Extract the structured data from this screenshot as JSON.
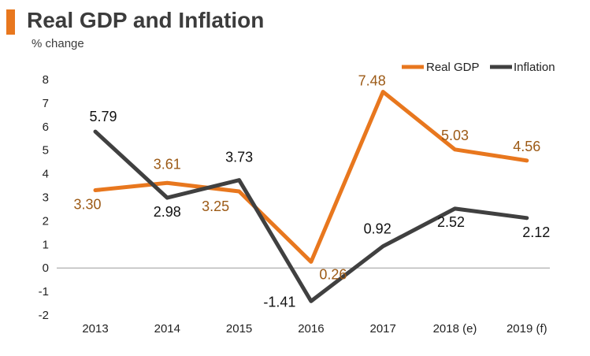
{
  "header": {
    "title": "Real GDP and Inflation",
    "subtitle": "% change"
  },
  "colors": {
    "accent": "#e8771e",
    "real_gdp": "#e8771e",
    "inflation": "#404040",
    "real_gdp_label": "#9c5a16",
    "inflation_label": "#111111",
    "axis_text": "#222222",
    "zero_line": "#9a9a9a"
  },
  "chart_data": {
    "type": "line",
    "title": "Real GDP and Inflation",
    "subtitle": "% change",
    "xlabel": "",
    "ylabel": "",
    "categories": [
      "2013",
      "2014",
      "2015",
      "2016",
      "2017",
      "2018 (e)",
      "2019 (f)"
    ],
    "ylim": [
      -2,
      8
    ],
    "yticks": [
      8,
      7,
      6,
      5,
      4,
      3,
      2,
      1,
      0,
      -1,
      -2
    ],
    "grid": false,
    "legend_position": "top-right",
    "series": [
      {
        "name": "Real GDP",
        "values": [
          3.3,
          3.61,
          3.25,
          0.26,
          7.48,
          5.03,
          4.56
        ],
        "labels": [
          "3.30",
          "3.61",
          "3.25",
          "0.26",
          "7.48",
          "5.03",
          "4.56"
        ]
      },
      {
        "name": "Inflation",
        "values": [
          5.79,
          2.98,
          3.73,
          -1.41,
          0.92,
          2.52,
          2.12
        ],
        "labels": [
          "5.79",
          "2.98",
          "3.73",
          "-1.41",
          "0.92",
          "2.52",
          "2.12"
        ]
      }
    ]
  }
}
